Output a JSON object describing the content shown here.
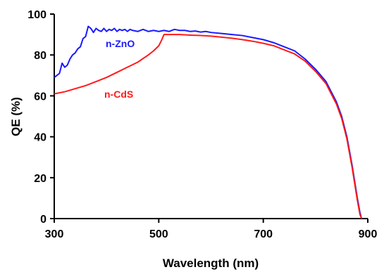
{
  "chart_data": {
    "type": "line",
    "xlabel": "Wavelength (nm)",
    "ylabel": "QE (%)",
    "xlim": [
      300,
      900
    ],
    "ylim": [
      0,
      100
    ],
    "xticks": [
      300,
      500,
      700,
      900
    ],
    "yticks": [
      0,
      20,
      40,
      60,
      80,
      100
    ],
    "x_tick_labels": [
      "300",
      "500",
      "700",
      "900"
    ],
    "y_tick_labels": [
      "0",
      "20",
      "40",
      "60",
      "80",
      "100"
    ],
    "grid": false,
    "series": [
      {
        "name": "n-ZnO",
        "color": "#1a1aff",
        "x": [
          300,
          305,
          310,
          315,
          320,
          325,
          330,
          335,
          340,
          345,
          350,
          355,
          360,
          365,
          370,
          375,
          380,
          385,
          390,
          395,
          400,
          405,
          410,
          415,
          420,
          425,
          430,
          435,
          440,
          445,
          450,
          460,
          470,
          480,
          490,
          500,
          510,
          520,
          530,
          540,
          550,
          560,
          570,
          580,
          590,
          600,
          620,
          640,
          660,
          680,
          700,
          720,
          740,
          760,
          780,
          800,
          820,
          840,
          850,
          860,
          865,
          870,
          875,
          880,
          885,
          888
        ],
        "values": [
          69,
          70,
          71,
          76,
          74,
          75,
          78,
          80,
          81,
          83,
          84,
          88,
          89,
          94,
          93,
          91,
          93,
          92,
          91.5,
          93,
          91.5,
          92.5,
          92,
          93,
          91.5,
          92.5,
          92,
          92.5,
          91.5,
          92.5,
          92,
          91.5,
          92.5,
          91.5,
          92,
          91.5,
          92,
          91.5,
          92.5,
          92,
          92,
          91.5,
          91.7,
          91.2,
          91.5,
          91,
          90.5,
          90,
          89.5,
          88.5,
          87.5,
          86,
          84,
          82,
          78,
          73,
          67,
          57,
          50,
          40,
          33,
          26,
          18,
          10,
          3,
          0
        ]
      },
      {
        "name": "n-CdS",
        "color": "#ff1a1a",
        "x": [
          300,
          320,
          340,
          360,
          380,
          400,
          420,
          440,
          460,
          480,
          490,
          500,
          505,
          510,
          520,
          540,
          560,
          580,
          600,
          620,
          640,
          660,
          680,
          700,
          720,
          740,
          760,
          780,
          800,
          820,
          840,
          850,
          860,
          865,
          870,
          875,
          880,
          885,
          888
        ],
        "values": [
          61,
          62,
          63.5,
          65,
          67,
          69,
          71.5,
          74,
          76.5,
          80,
          82,
          84.5,
          87,
          90,
          90,
          90,
          89.7,
          89.5,
          89.2,
          88.7,
          88.2,
          87.5,
          86.7,
          85.7,
          84.5,
          82.5,
          80.5,
          77,
          72,
          66,
          56,
          49,
          39,
          32,
          25,
          17,
          9,
          2,
          0
        ]
      }
    ]
  }
}
